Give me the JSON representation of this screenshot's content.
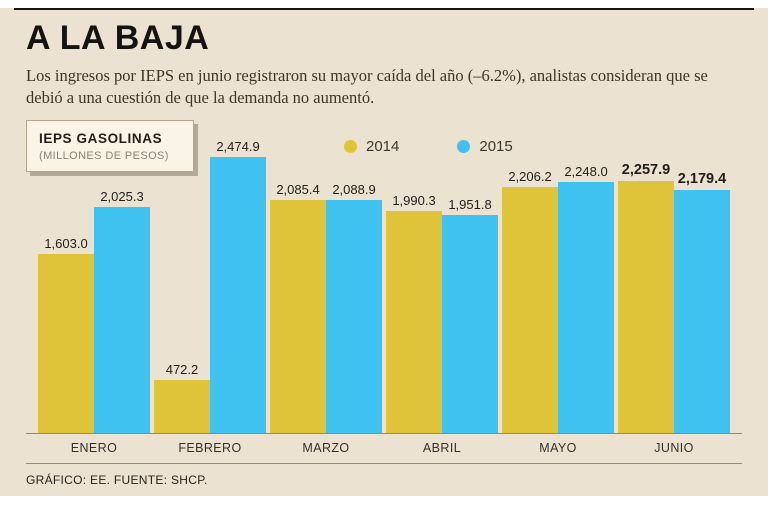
{
  "header": {
    "title": "A LA BAJA",
    "subtitle": "Los ingresos por IEPS en junio registraron su mayor caída del año (–6.2%), analistas consideran que se debió a una cuestión de que la demanda no aumentó."
  },
  "chart_box": {
    "title": "IEPS GASOLINAS",
    "subtitle": "(MILLONES DE PESOS)"
  },
  "legend": [
    {
      "label": "2014",
      "color": "#dfc338"
    },
    {
      "label": "2015",
      "color": "#3fc2f0"
    }
  ],
  "chart_data": {
    "type": "bar",
    "title": "IEPS GASOLINAS (MILLONES DE PESOS)",
    "categories": [
      "ENERO",
      "FEBRERO",
      "MARZO",
      "ABRIL",
      "MAYO",
      "JUNIO"
    ],
    "series": [
      {
        "name": "2014",
        "color": "#dfc338",
        "values": [
          1603.0,
          472.2,
          2085.4,
          1990.3,
          2206.2,
          2257.9
        ]
      },
      {
        "name": "2015",
        "color": "#3fc2f0",
        "values": [
          2025.3,
          2474.9,
          2088.9,
          1951.8,
          2248.0,
          2179.4
        ]
      }
    ],
    "value_labels": [
      [
        "1,603.0",
        "472.2",
        "2,085.4",
        "1,990.3",
        "2,206.2",
        "2,257.9"
      ],
      [
        "2,025.3",
        "2,474.9",
        "2,088.9",
        "1,951.8",
        "2,248.0",
        "2,179.4"
      ]
    ],
    "ylim": [
      0,
      2600
    ],
    "grid": false,
    "legend_position": "top-center",
    "emphasis_category": "JUNIO"
  },
  "footer": {
    "source": "GRÁFICO: EE. FUENTE: SHCP."
  }
}
